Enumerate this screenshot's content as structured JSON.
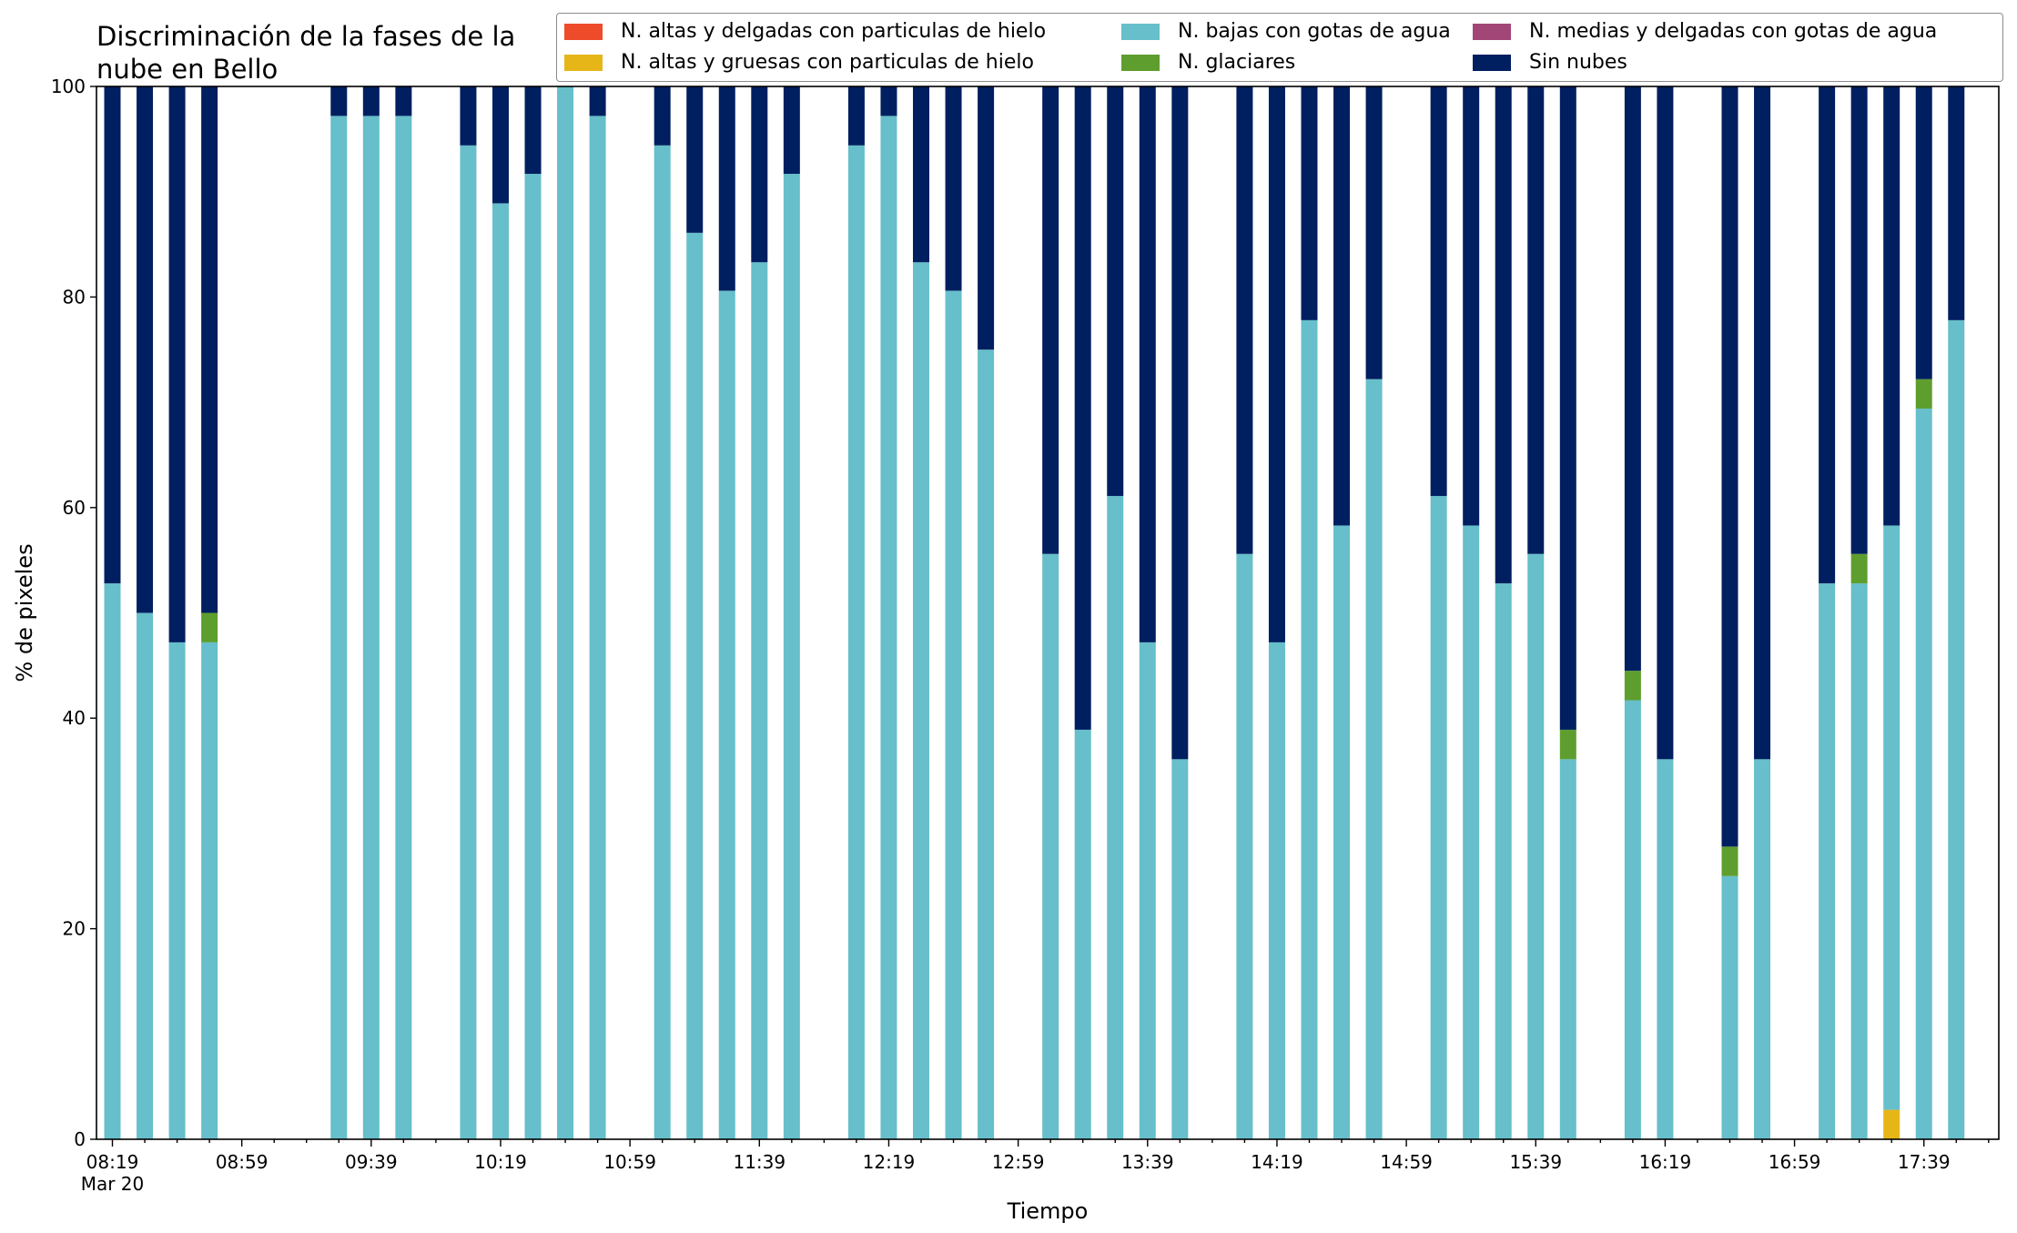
{
  "chart_data": {
    "type": "bar",
    "stacked": true,
    "title": "Discriminación de la fases de la\nnube en Bello",
    "xlabel": "Tiempo",
    "ylabel": "% de pixeles",
    "ylim": [
      0,
      100
    ],
    "yticks": [
      0,
      20,
      40,
      60,
      80,
      100
    ],
    "x_tick_labels": [
      "08:19",
      "08:59",
      "09:39",
      "10:19",
      "10:59",
      "11:39",
      "12:19",
      "12:59",
      "13:39",
      "14:19",
      "14:59",
      "15:39",
      "16:19",
      "16:59",
      "17:39"
    ],
    "x_date_label": "Mar 20",
    "legend_position": "top",
    "legend": [
      {
        "name": "N. altas y delgadas con particulas de hielo",
        "color": "#ee4b2b"
      },
      {
        "name": "N. altas y gruesas con particulas de hielo",
        "color": "#e6b619"
      },
      {
        "name": "N. bajas con gotas de agua",
        "color": "#66bfca"
      },
      {
        "name": "N. glaciares",
        "color": "#5e9e2e"
      },
      {
        "name": "N. medias y delgadas con gotas de agua",
        "color": "#a24678"
      },
      {
        "name": "Sin nubes",
        "color": "#001f60"
      }
    ],
    "time_start": "08:19",
    "interval_minutes": 10,
    "slots": [
      {
        "time": "08:19",
        "low": 52.8,
        "glacier": 0,
        "clear": 47.2
      },
      {
        "time": "08:29",
        "low": 50.0,
        "glacier": 0,
        "clear": 50.0
      },
      {
        "time": "08:39",
        "low": 47.2,
        "glacier": 0,
        "clear": 52.8
      },
      {
        "time": "08:49",
        "low": 47.2,
        "glacier": 2.8,
        "clear": 50.0
      },
      {
        "time": "09:29",
        "low": 97.2,
        "glacier": 0,
        "clear": 2.8
      },
      {
        "time": "09:39",
        "low": 97.2,
        "glacier": 0,
        "clear": 2.8
      },
      {
        "time": "09:49",
        "low": 97.2,
        "glacier": 0,
        "clear": 2.8
      },
      {
        "time": "10:09",
        "low": 94.4,
        "glacier": 0,
        "clear": 5.6
      },
      {
        "time": "10:19",
        "low": 88.9,
        "glacier": 0,
        "clear": 11.1
      },
      {
        "time": "10:29",
        "low": 91.7,
        "glacier": 0,
        "clear": 8.3
      },
      {
        "time": "10:39",
        "low": 100.0,
        "glacier": 0,
        "clear": 0
      },
      {
        "time": "10:49",
        "low": 97.2,
        "glacier": 0,
        "clear": 2.8
      },
      {
        "time": "11:09",
        "low": 94.4,
        "glacier": 0,
        "clear": 5.6
      },
      {
        "time": "11:19",
        "low": 86.1,
        "glacier": 0,
        "clear": 13.9
      },
      {
        "time": "11:29",
        "low": 80.6,
        "glacier": 0,
        "clear": 19.4
      },
      {
        "time": "11:39",
        "low": 83.3,
        "glacier": 0,
        "clear": 16.7
      },
      {
        "time": "11:49",
        "low": 91.7,
        "glacier": 0,
        "clear": 8.3
      },
      {
        "time": "12:09",
        "low": 94.4,
        "glacier": 0,
        "clear": 5.6
      },
      {
        "time": "12:19",
        "low": 97.2,
        "glacier": 0,
        "clear": 2.8
      },
      {
        "time": "12:29",
        "low": 83.3,
        "glacier": 0,
        "clear": 16.7
      },
      {
        "time": "12:39",
        "low": 80.6,
        "glacier": 0,
        "clear": 19.4
      },
      {
        "time": "12:49",
        "low": 75.0,
        "glacier": 0,
        "clear": 25.0
      },
      {
        "time": "13:09",
        "low": 55.6,
        "glacier": 0,
        "clear": 44.4
      },
      {
        "time": "13:19",
        "low": 38.9,
        "glacier": 0,
        "clear": 61.1
      },
      {
        "time": "13:29",
        "low": 61.1,
        "glacier": 0,
        "clear": 38.9
      },
      {
        "time": "13:39",
        "low": 47.2,
        "glacier": 0,
        "clear": 52.8
      },
      {
        "time": "13:49",
        "low": 36.1,
        "glacier": 0,
        "clear": 63.9
      },
      {
        "time": "14:09",
        "low": 55.6,
        "glacier": 0,
        "clear": 44.4
      },
      {
        "time": "14:19",
        "low": 47.2,
        "glacier": 0,
        "clear": 52.8
      },
      {
        "time": "14:29",
        "low": 77.8,
        "glacier": 0,
        "clear": 22.2
      },
      {
        "time": "14:39",
        "low": 58.3,
        "glacier": 0,
        "clear": 41.7
      },
      {
        "time": "14:49",
        "low": 72.2,
        "glacier": 0,
        "clear": 27.8
      },
      {
        "time": "15:09",
        "low": 61.1,
        "glacier": 0,
        "clear": 38.9
      },
      {
        "time": "15:19",
        "low": 58.3,
        "glacier": 0,
        "clear": 41.7
      },
      {
        "time": "15:29",
        "low": 52.8,
        "glacier": 0,
        "clear": 47.2
      },
      {
        "time": "15:39",
        "low": 55.6,
        "glacier": 0,
        "clear": 44.4
      },
      {
        "time": "15:49",
        "low": 36.1,
        "glacier": 2.8,
        "clear": 61.1
      },
      {
        "time": "16:09",
        "low": 41.7,
        "glacier": 2.8,
        "clear": 55.5
      },
      {
        "time": "16:19",
        "low": 36.1,
        "glacier": 0,
        "clear": 63.9
      },
      {
        "time": "16:39",
        "low": 25.0,
        "glacier": 2.8,
        "clear": 72.2
      },
      {
        "time": "16:49",
        "low": 36.1,
        "glacier": 0,
        "clear": 63.9
      },
      {
        "time": "17:09",
        "low": 52.8,
        "glacier": 0,
        "clear": 47.2
      },
      {
        "time": "17:19",
        "low": 52.8,
        "glacier": 2.8,
        "clear": 44.4
      },
      {
        "time": "17:29",
        "thick": 2.8,
        "low": 55.5,
        "glacier": 0,
        "clear": 41.7
      },
      {
        "time": "17:39",
        "low": 69.4,
        "glacier": 2.8,
        "clear": 27.8
      },
      {
        "time": "17:49",
        "low": 77.8,
        "glacier": 0,
        "clear": 22.2
      }
    ]
  }
}
